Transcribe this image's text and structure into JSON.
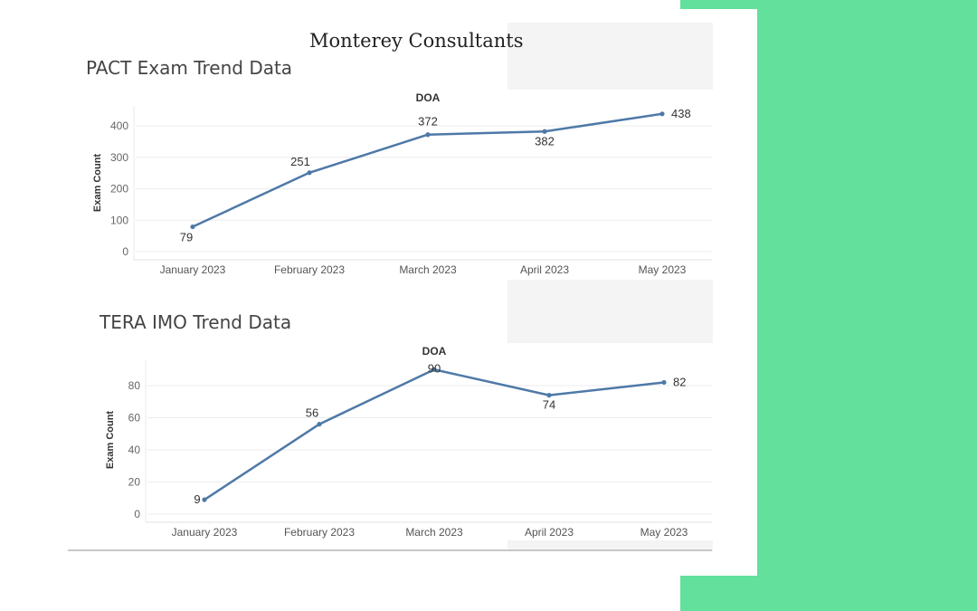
{
  "page": {
    "heading": "Monterey Consultants",
    "colors": {
      "line": "#4e79a7",
      "accent_band": "#62e09c",
      "panel": "#f4f4f4",
      "grid": "#ececec"
    }
  },
  "chart_data": [
    {
      "type": "line",
      "title": "PACT Exam Trend Data",
      "series_header": "DOA",
      "xlabel": "",
      "ylabel": "Exam Count",
      "categories": [
        "January 2023",
        "February 2023",
        "March 2023",
        "April 2023",
        "May 2023"
      ],
      "yticks": [
        0,
        100,
        200,
        300,
        400
      ],
      "ylim": [
        0,
        460
      ],
      "grid": true,
      "series": [
        {
          "values": [
            79,
            251,
            372,
            382,
            438
          ]
        }
      ],
      "data_labels": [
        "79",
        "251",
        "372",
        "382",
        "438"
      ]
    },
    {
      "type": "line",
      "title": "TERA IMO Trend Data",
      "series_header": "DOA",
      "xlabel": "",
      "ylabel": "Exam Count",
      "categories": [
        "January 2023",
        "February 2023",
        "March 2023",
        "April 2023",
        "May 2023"
      ],
      "yticks": [
        0,
        20,
        40,
        60,
        80
      ],
      "ylim": [
        0,
        95
      ],
      "grid": true,
      "series": [
        {
          "values": [
            9,
            56,
            90,
            74,
            82
          ]
        }
      ],
      "data_labels": [
        "9",
        "56",
        "90",
        "74",
        "82"
      ]
    }
  ]
}
